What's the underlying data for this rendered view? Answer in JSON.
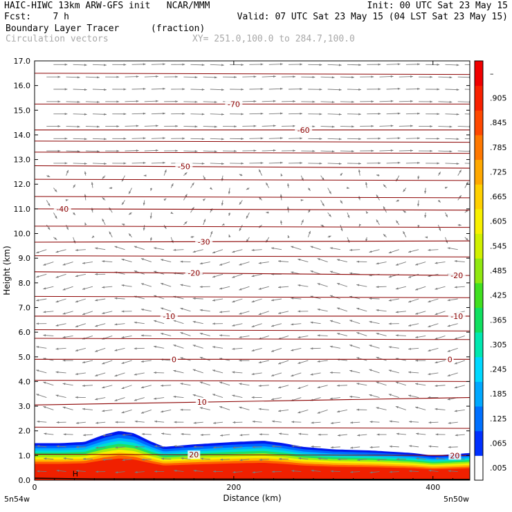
{
  "header": {
    "line1_left": "HAIC-HIWC 13km ARW-GFS init   NCAR/MMM",
    "line1_right": "Init: 00 UTC Sat 23 May 15",
    "line2_left": "Fcst:    7 h",
    "line2_right": "Valid: 07 UTC Sat 23 May 15 (04 LST Sat 23 May 15)",
    "field_name": "Boundary Layer Tracer",
    "field_units": "(fraction)",
    "vector_name": "Circulation vectors",
    "xy_range": "XY= 251.0,100.0 to 284.7,100.0"
  },
  "chart_data": {
    "type": "heatmap",
    "title": "Boundary Layer Tracer (fraction)",
    "xlabel": "Distance (km)",
    "ylabel": "Height (km)",
    "xlim": [
      0,
      437
    ],
    "ylim": [
      0,
      17
    ],
    "x_ticks": [
      0,
      200,
      400
    ],
    "y_ticks": [
      0.0,
      1.0,
      2.0,
      3.0,
      4.0,
      5.0,
      6.0,
      7.0,
      8.0,
      9.0,
      10.0,
      11.0,
      12.0,
      13.0,
      14.0,
      15.0,
      16.0,
      17.0
    ],
    "x_endpoint_labels": {
      "left": "5n54w",
      "right": "5n50w"
    },
    "colorbar": {
      "labels": [
        ".005",
        ".065",
        ".125",
        ".185",
        ".245",
        ".305",
        ".365",
        ".425",
        ".485",
        ".545",
        ".605",
        ".665",
        ".725",
        ".785",
        ".845",
        ".905",
        "–"
      ],
      "colors": [
        "#ffffff",
        "#0030ff",
        "#0070ff",
        "#00a8ff",
        "#00d8ff",
        "#00e8b0",
        "#10e060",
        "#40e020",
        "#90e810",
        "#d0f000",
        "#f8f000",
        "#ffd000",
        "#ffa800",
        "#ff7800",
        "#ff4800",
        "#f82000",
        "#f00000"
      ]
    },
    "tracer_top": [
      {
        "x": 0,
        "z": 1.5
      },
      {
        "x": 25,
        "z": 1.5
      },
      {
        "x": 50,
        "z": 1.55
      },
      {
        "x": 70,
        "z": 1.85
      },
      {
        "x": 85,
        "z": 2.0
      },
      {
        "x": 100,
        "z": 1.9
      },
      {
        "x": 115,
        "z": 1.6
      },
      {
        "x": 130,
        "z": 1.35
      },
      {
        "x": 160,
        "z": 1.45
      },
      {
        "x": 200,
        "z": 1.55
      },
      {
        "x": 230,
        "z": 1.6
      },
      {
        "x": 250,
        "z": 1.5
      },
      {
        "x": 270,
        "z": 1.35
      },
      {
        "x": 300,
        "z": 1.25
      },
      {
        "x": 340,
        "z": 1.2
      },
      {
        "x": 380,
        "z": 1.1
      },
      {
        "x": 400,
        "z": 1.0
      },
      {
        "x": 420,
        "z": 1.05
      },
      {
        "x": 437,
        "z": 1.1
      }
    ],
    "isotherms": [
      {
        "label": "-70",
        "z0": 15.25,
        "z1": 15.25,
        "label_x": 200
      },
      {
        "label": "-60",
        "z0": 14.2,
        "z1": 14.2,
        "label_x": 270
      },
      {
        "label": "-50",
        "z0": 12.75,
        "z1": 12.65,
        "label_x": 150
      },
      {
        "label": "-40",
        "z0": 11.0,
        "z1": 10.95,
        "label_x": 28
      },
      {
        "label": "-30",
        "z0": 9.65,
        "z1": 9.7,
        "label_x": 170
      },
      {
        "label": "-20",
        "z0": 8.45,
        "z1": 8.3,
        "label_x": 160
      },
      {
        "label": "-20",
        "z0": 8.45,
        "z1": 8.3,
        "label_x": 424
      },
      {
        "label": "-10",
        "z0": 6.65,
        "z1": 6.65,
        "label_x": 135
      },
      {
        "label": "-10",
        "z0": 6.65,
        "z1": 6.65,
        "label_x": 424
      },
      {
        "label": "0",
        "z0": 4.9,
        "z1": 4.9,
        "label_x": 140
      },
      {
        "label": "0",
        "z0": 4.9,
        "z1": 4.9,
        "label_x": 417
      },
      {
        "label": "10",
        "z0": 3.05,
        "z1": 3.35,
        "label_x": 168
      },
      {
        "label": "20",
        "z0": 1.05,
        "z1": 1.0,
        "label_x": 160
      },
      {
        "label": "20",
        "z0": 1.05,
        "z1": 1.0,
        "label_x": 422
      }
    ],
    "extra_contours_km": [
      16.5,
      13.75,
      13.3,
      12.2,
      11.5,
      10.3,
      9.1,
      7.45,
      6.1,
      5.75,
      4.05,
      2.15
    ],
    "terrain_label": "H"
  },
  "colors": {
    "contour": "#8b0000",
    "vector": "#7a7a7a",
    "frame": "#000000"
  }
}
